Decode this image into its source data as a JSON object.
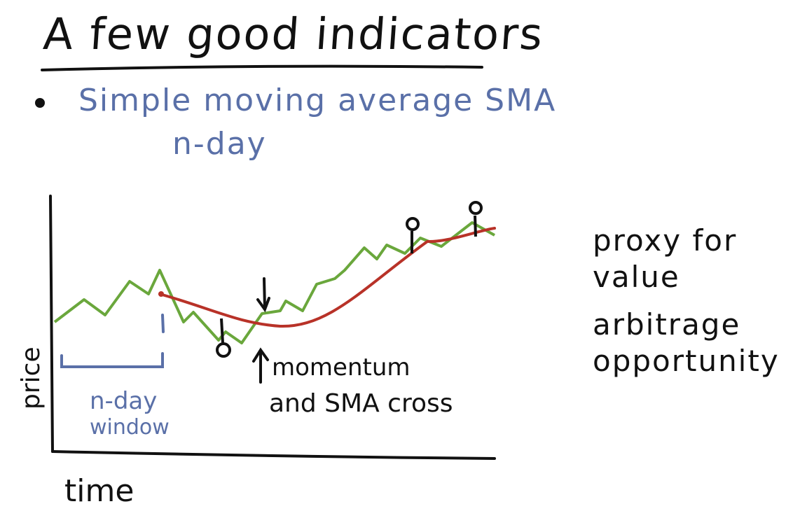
{
  "title": "A few good indicators",
  "bullet_heading": "Simple moving average SMA",
  "bullet_sub": "n-day",
  "notes": {
    "line1": "proxy for",
    "line2": "value",
    "line3": "arbitrage",
    "line4": "opportunity"
  },
  "chart": {
    "xlabel": "time",
    "ylabel": "price",
    "window_label_1": "n-day",
    "window_label_2": "window",
    "cross_label_1": "momentum",
    "cross_label_2": "and SMA cross"
  },
  "colors": {
    "ink": "#111111",
    "blue": "#5a70a8",
    "price": "#6aa73c",
    "sma": "#b83228"
  }
}
